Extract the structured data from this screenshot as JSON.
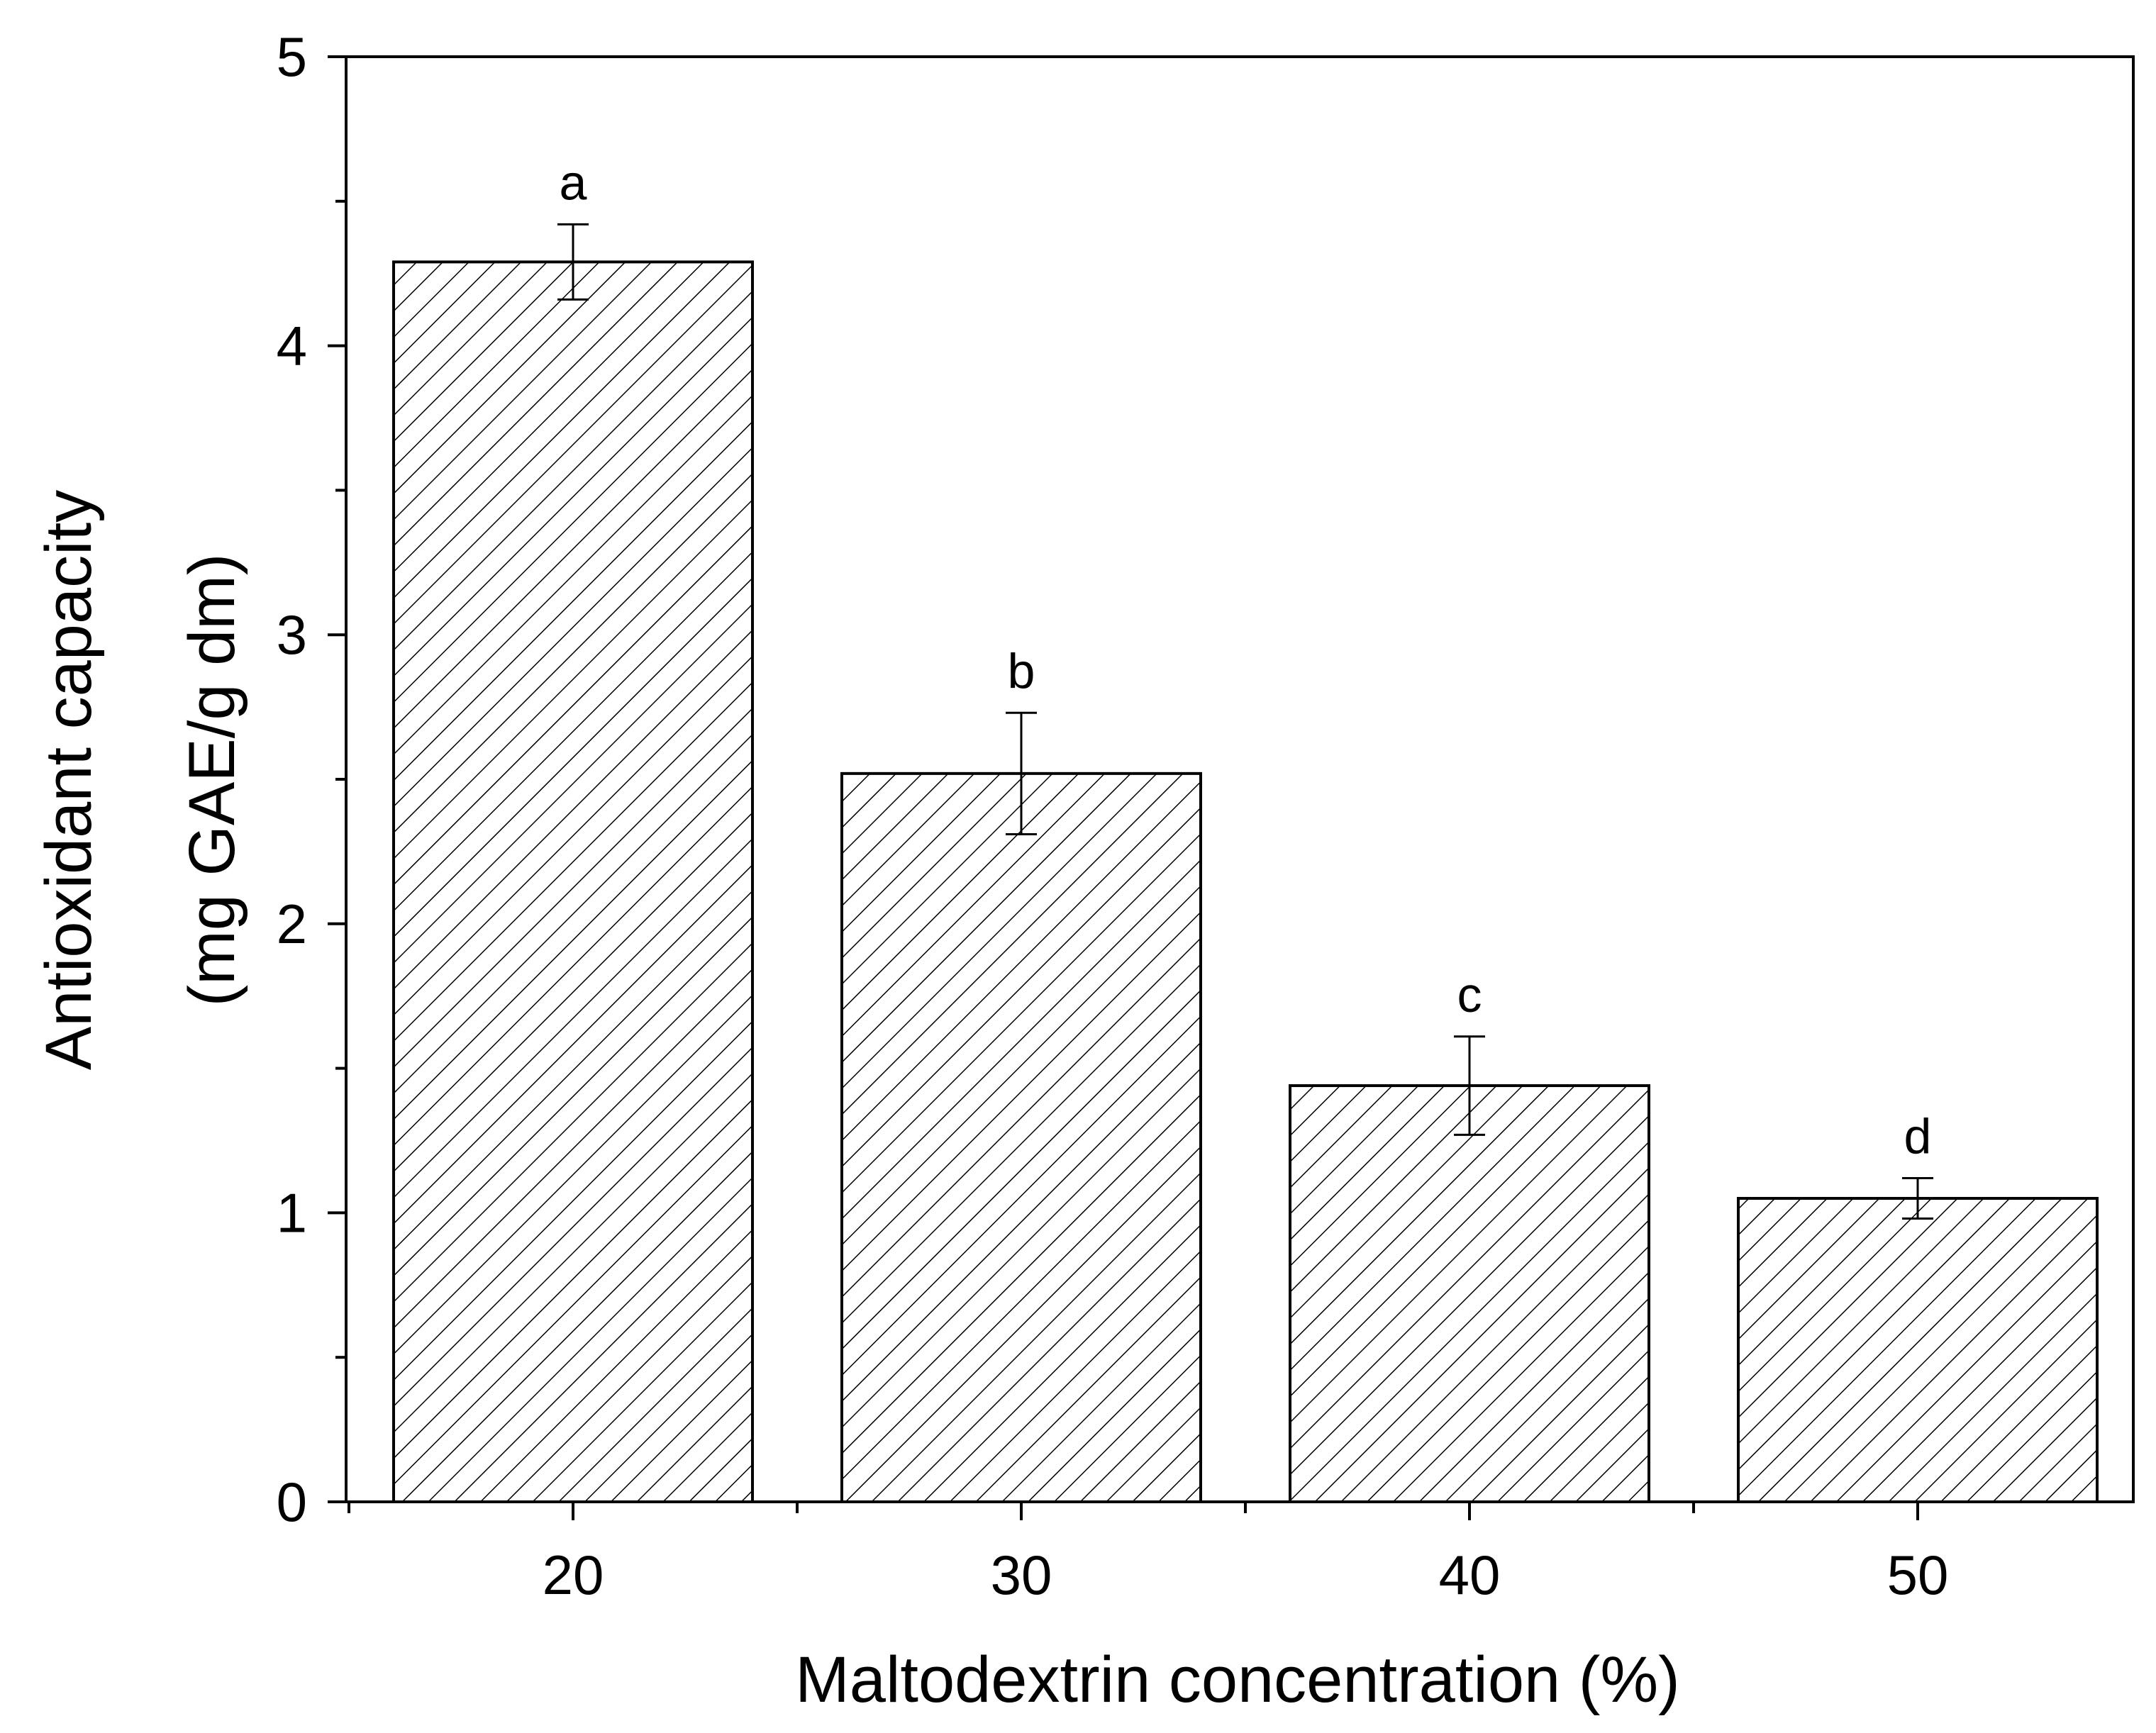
{
  "chart_data": {
    "type": "bar",
    "categories": [
      "20",
      "30",
      "40",
      "50"
    ],
    "values": [
      4.29,
      2.52,
      1.44,
      1.05
    ],
    "error": [
      0.13,
      0.21,
      0.17,
      0.07
    ],
    "significance_letters": [
      "a",
      "b",
      "c",
      "d"
    ],
    "title": "",
    "xlabel": "Maltodextrin concentration (%)",
    "ylabel_line1": "Antioxidant capacity",
    "ylabel_line2": "(mg GAE/g dm)",
    "ylim": [
      0,
      5
    ],
    "yticks": [
      "0",
      "1",
      "2",
      "3",
      "4",
      "5"
    ],
    "grid": false,
    "bar_fill": "hatched diagonal",
    "colors": {
      "bar_stroke": "#000000",
      "hatch": "#000000",
      "axis": "#000000",
      "background": "#ffffff"
    }
  }
}
